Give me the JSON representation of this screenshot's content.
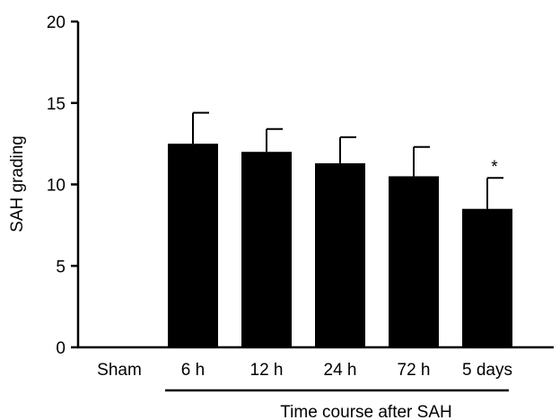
{
  "chart_data": {
    "type": "bar",
    "categories": [
      "Sham",
      "6 h",
      "12 h",
      "24 h",
      "72 h",
      "5 days"
    ],
    "values": [
      0,
      12.5,
      12.0,
      11.3,
      10.5,
      8.5
    ],
    "error_upper": [
      0,
      1.9,
      1.4,
      1.6,
      1.8,
      1.9
    ],
    "annotations": [
      "",
      "",
      "",
      "",
      "",
      "*"
    ],
    "ylabel": "SAH grading",
    "xlabel": "",
    "ylim": [
      0,
      20
    ],
    "yticks": [
      0,
      5,
      10,
      15,
      20
    ],
    "group_label": "Time course after SAH",
    "group_span": [
      "6 h",
      "5 days"
    ],
    "bar_color": "#000000"
  }
}
